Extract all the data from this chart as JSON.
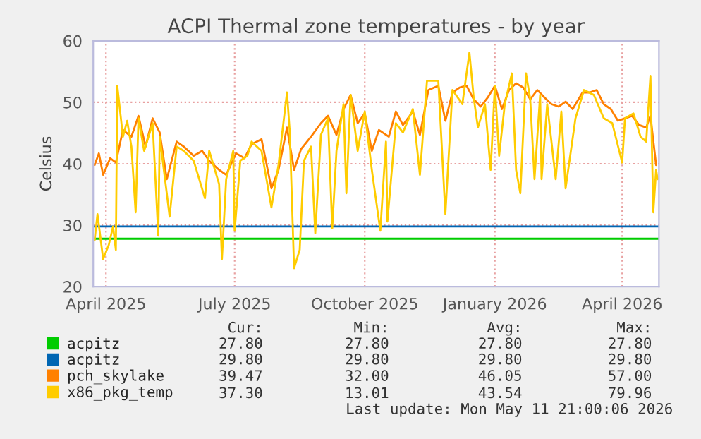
{
  "chart_data": {
    "type": "line",
    "title": "ACPI Thermal zone temperatures - by year",
    "ylabel": "Celsius",
    "xlim": [
      "2025-04-06",
      "2026-05-11"
    ],
    "xticks": [
      {
        "value": "2025-04-15",
        "label": "April 2025"
      },
      {
        "value": "2025-07-15",
        "label": "July 2025"
      },
      {
        "value": "2025-10-15",
        "label": "October 2025"
      },
      {
        "value": "2026-01-15",
        "label": "January 2026"
      },
      {
        "value": "2026-04-15",
        "label": "April 2026"
      }
    ],
    "ylim": [
      20,
      60
    ],
    "yticks": [
      20,
      30,
      40,
      50,
      60
    ],
    "grid": true,
    "legend": "bottom",
    "line_style": "solid",
    "marker": "none",
    "series": [
      {
        "name": "acpitz",
        "color": "#00cc00",
        "x": [
          "2025-04-06",
          "2025-10-17",
          "2025-10-18",
          "2025-10-20",
          "2026-05-11"
        ],
        "values": [
          27.8,
          27.8,
          null,
          27.8,
          27.8
        ]
      },
      {
        "name": "acpitz",
        "color": "#0066b3",
        "x": [
          "2025-04-06",
          "2025-10-17",
          "2025-10-18",
          "2025-10-20",
          "2026-05-11"
        ],
        "values": [
          29.8,
          29.8,
          null,
          29.8,
          29.8
        ]
      },
      {
        "name": "pch_skylake",
        "color": "#ff8000",
        "x": [
          "2025-04-07",
          "2025-04-10",
          "2025-04-13",
          "2025-04-18",
          "2025-04-22",
          "2025-04-27",
          "2025-05-03",
          "2025-05-08",
          "2025-05-13",
          "2025-05-18",
          "2025-05-23",
          "2025-05-28",
          "2025-06-04",
          "2025-06-09",
          "2025-06-16",
          "2025-06-22",
          "2025-06-27",
          "2025-07-04",
          "2025-07-09",
          "2025-07-16",
          "2025-07-22",
          "2025-07-27",
          "2025-08-03",
          "2025-08-10",
          "2025-08-15",
          "2025-08-21",
          "2025-08-26",
          "2025-08-31",
          "2025-09-07",
          "2025-09-14",
          "2025-09-19",
          "2025-09-25",
          "2025-09-30",
          "2025-10-05",
          "2025-10-10",
          "2025-10-15",
          "2025-10-20",
          "2025-10-25",
          "2025-11-01",
          "2025-11-06",
          "2025-11-11",
          "2025-11-18",
          "2025-11-23",
          "2025-11-29",
          "2025-12-06",
          "2025-12-11",
          "2025-12-16",
          "2025-12-21",
          "2025-12-26",
          "2025-12-31",
          "2026-01-05",
          "2026-01-10",
          "2026-01-15",
          "2026-01-20",
          "2026-01-25",
          "2026-01-30",
          "2026-02-04",
          "2026-02-09",
          "2026-02-14",
          "2026-02-19",
          "2026-02-24",
          "2026-03-01",
          "2026-03-06",
          "2026-03-11",
          "2026-03-18",
          "2026-03-23",
          "2026-03-28",
          "2026-04-02",
          "2026-04-07",
          "2026-04-12",
          "2026-04-17",
          "2026-04-22",
          "2026-04-27",
          "2026-05-02",
          "2026-05-05",
          "2026-05-09"
        ],
        "values": [
          39.8,
          41.7,
          38.2,
          40.9,
          40.2,
          45.5,
          44.4,
          47.8,
          42.8,
          47.4,
          45.1,
          37.5,
          43.6,
          42.8,
          41.3,
          42.1,
          40.5,
          39.0,
          38.2,
          41.7,
          40.9,
          43.2,
          44.0,
          36.0,
          39.0,
          45.9,
          39.0,
          42.4,
          44.4,
          46.6,
          47.8,
          44.7,
          48.9,
          51.2,
          46.6,
          48.2,
          42.1,
          45.5,
          44.4,
          48.5,
          46.3,
          48.5,
          44.7,
          52.0,
          52.7,
          47.0,
          51.6,
          52.4,
          52.7,
          50.5,
          49.3,
          50.8,
          52.7,
          48.9,
          52.0,
          53.1,
          52.4,
          50.5,
          52.0,
          50.8,
          49.7,
          49.3,
          50.1,
          48.9,
          51.6,
          51.6,
          52.0,
          49.7,
          48.9,
          47.0,
          47.4,
          47.8,
          46.3,
          45.9,
          47.8,
          39.8
        ]
      },
      {
        "name": "x86_pkg_temp",
        "color": "#ffcc00",
        "x": [
          "2025-04-07",
          "2025-04-09",
          "2025-04-13",
          "2025-04-17",
          "2025-04-20",
          "2025-04-22",
          "2025-04-23",
          "2025-04-27",
          "2025-04-30",
          "2025-05-03",
          "2025-05-06",
          "2025-05-08",
          "2025-05-12",
          "2025-05-18",
          "2025-05-22",
          "2025-05-23",
          "2025-05-28",
          "2025-05-30",
          "2025-06-04",
          "2025-06-09",
          "2025-06-16",
          "2025-06-24",
          "2025-06-27",
          "2025-07-04",
          "2025-07-06",
          "2025-07-09",
          "2025-07-14",
          "2025-07-15",
          "2025-07-19",
          "2025-07-24",
          "2025-07-27",
          "2025-08-03",
          "2025-08-10",
          "2025-08-15",
          "2025-08-21",
          "2025-08-23",
          "2025-08-26",
          "2025-08-30",
          "2025-09-02",
          "2025-09-07",
          "2025-09-10",
          "2025-09-14",
          "2025-09-19",
          "2025-09-22",
          "2025-09-25",
          "2025-09-30",
          "2025-10-02",
          "2025-10-05",
          "2025-10-10",
          "2025-10-15",
          "2025-10-20",
          "2025-10-26",
          "2025-10-30",
          "2025-10-31",
          "2025-11-06",
          "2025-11-11",
          "2025-11-18",
          "2025-11-23",
          "2025-11-28",
          "2025-12-06",
          "2025-12-11",
          "2025-12-16",
          "2025-12-23",
          "2025-12-28",
          "2025-12-31",
          "2026-01-03",
          "2026-01-08",
          "2026-01-12",
          "2026-01-15",
          "2026-01-18",
          "2026-01-22",
          "2026-01-27",
          "2026-01-30",
          "2026-02-02",
          "2026-02-06",
          "2026-02-09",
          "2026-02-12",
          "2026-02-16",
          "2026-02-17",
          "2026-02-21",
          "2026-02-27",
          "2026-03-03",
          "2026-03-06",
          "2026-03-13",
          "2026-03-19",
          "2026-03-26",
          "2026-04-02",
          "2026-04-08",
          "2026-04-15",
          "2026-04-17",
          "2026-04-23",
          "2026-04-28",
          "2026-05-02",
          "2026-05-05",
          "2026-05-07",
          "2026-05-09",
          "2026-05-10"
        ],
        "values": [
          27.6,
          31.8,
          24.5,
          26.8,
          29.8,
          26.0,
          52.7,
          44.4,
          47.0,
          42.8,
          32.1,
          47.4,
          42.1,
          46.6,
          28.3,
          44.4,
          35.2,
          31.4,
          42.8,
          42.1,
          40.5,
          34.4,
          42.1,
          36.7,
          24.5,
          37.5,
          42.1,
          29.1,
          40.5,
          41.3,
          43.6,
          42.1,
          32.9,
          39.8,
          51.6,
          45.1,
          23.0,
          26.0,
          40.5,
          42.8,
          28.7,
          44.7,
          47.4,
          29.5,
          42.1,
          49.7,
          35.2,
          51.2,
          42.1,
          48.5,
          39.0,
          29.1,
          43.6,
          30.6,
          46.6,
          45.1,
          48.9,
          38.2,
          53.5,
          53.5,
          31.8,
          52.0,
          49.7,
          58.1,
          50.8,
          45.9,
          49.7,
          39.0,
          52.7,
          41.3,
          49.7,
          54.7,
          39.0,
          35.2,
          54.7,
          50.5,
          37.5,
          51.2,
          37.5,
          49.7,
          37.5,
          48.5,
          36.0,
          47.4,
          52.0,
          51.2,
          47.4,
          46.6,
          40.2,
          47.4,
          48.2,
          44.4,
          43.6,
          54.3,
          32.1,
          39.0,
          37.5
        ]
      }
    ],
    "annotations": [
      "Cur:",
      "Min:",
      "Avg:",
      "Max:",
      "27.80",
      "27.80",
      "27.80",
      "27.80",
      "29.80",
      "29.80",
      "29.80",
      "29.80",
      "39.47",
      "32.00",
      "46.05",
      "57.00",
      "37.30",
      "13.01",
      "43.54",
      "79.96",
      "Last update: Mon May 11 21:00:06 2026"
    ]
  }
}
